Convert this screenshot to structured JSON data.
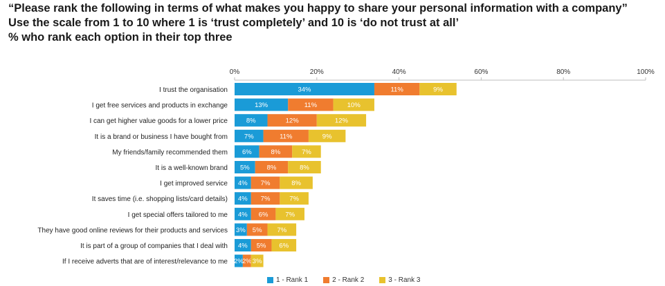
{
  "title": {
    "line1": "“Please rank the following in terms of what makes you happy to share your personal information with a company”",
    "line2": "Use the scale from 1 to 10 where 1 is ‘trust completely’ and 10 is ‘do not trust at all’",
    "line3": "% who rank each option in their top three"
  },
  "chart_data": {
    "type": "bar",
    "orientation": "horizontal",
    "stacked": true,
    "xlim": [
      0,
      100
    ],
    "x_ticks": [
      "0%",
      "20%",
      "40%",
      "60%",
      "80%",
      "100%"
    ],
    "x_tick_values": [
      0,
      20,
      40,
      60,
      80,
      100
    ],
    "categories": [
      "I trust the organisation",
      "I get free services and products in exchange",
      "I can get higher value goods for a lower price",
      "It is a brand or business I have bought from",
      "My friends/family recommended them",
      "It is a well-known brand",
      "I get improved service",
      "It saves time (i.e. shopping lists/card details)",
      "I get special offers tailored to me",
      "They have good online reviews for their products and services",
      "It is part of a group of companies that I deal with",
      "If I receive adverts that are of interest/relevance to me"
    ],
    "series": [
      {
        "name": "1 - Rank 1",
        "color": "#1a9bd7",
        "values": [
          34,
          13,
          8,
          7,
          6,
          5,
          4,
          4,
          4,
          3,
          4,
          2
        ]
      },
      {
        "name": "2 - Rank 2",
        "color": "#f07c2f",
        "values": [
          11,
          11,
          12,
          11,
          8,
          8,
          7,
          7,
          6,
          5,
          5,
          2
        ]
      },
      {
        "name": "3 - Rank 3",
        "color": "#e8c22e",
        "values": [
          9,
          10,
          12,
          9,
          7,
          8,
          8,
          7,
          7,
          7,
          6,
          3
        ]
      }
    ],
    "labels": [
      [
        "34%",
        "11%",
        "9%"
      ],
      [
        "13%",
        "11%",
        "10%"
      ],
      [
        "8%",
        "12%",
        "12%"
      ],
      [
        "7%",
        "11%",
        "9%"
      ],
      [
        "6%",
        "8%",
        "7%"
      ],
      [
        "5%",
        "8%",
        "8%"
      ],
      [
        "4%",
        "7%",
        "8%"
      ],
      [
        "4%",
        "7%",
        "7%"
      ],
      [
        "4%",
        "6%",
        "7%"
      ],
      [
        "3%",
        "5%",
        "7%"
      ],
      [
        "4%",
        "5%",
        "6%"
      ],
      [
        "2%",
        "2%",
        "3%"
      ]
    ],
    "legend": {
      "position": "bottom"
    }
  }
}
